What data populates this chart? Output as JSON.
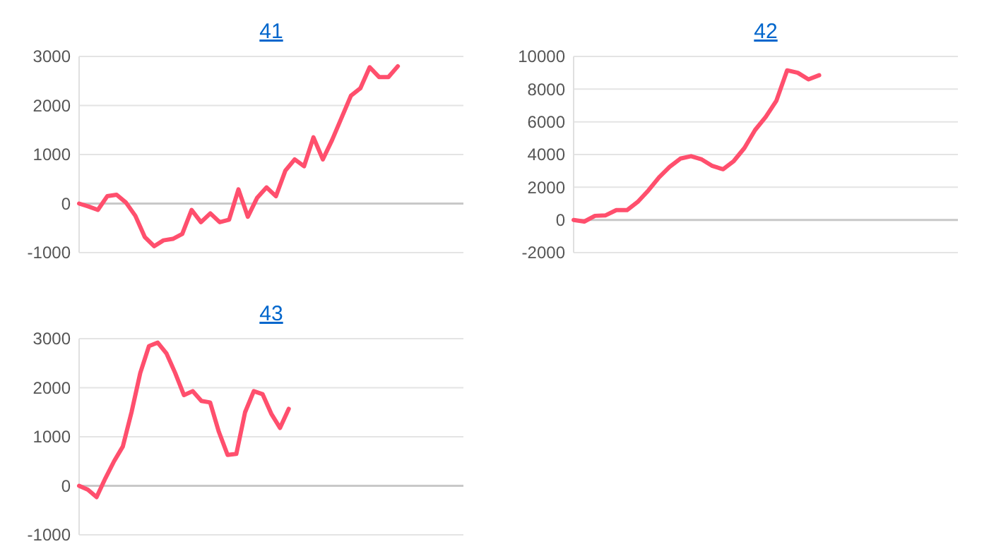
{
  "chart_data": [
    {
      "type": "line",
      "title": "41",
      "categories": [
        null,
        null,
        null,
        null,
        null,
        null,
        null,
        null,
        null,
        null,
        null,
        null,
        null,
        null,
        null,
        null,
        null,
        null,
        null,
        null,
        null,
        null,
        null,
        null,
        null,
        null,
        null,
        null,
        null,
        null,
        null,
        null,
        null,
        null,
        null,
        null,
        null,
        null,
        null,
        null,
        null,
        null
      ],
      "values": [
        0,
        -60,
        -130,
        150,
        180,
        20,
        -250,
        -680,
        -870,
        -750,
        -720,
        -620,
        -130,
        -380,
        -200,
        -380,
        -330,
        290,
        -270,
        120,
        330,
        150,
        670,
        900,
        760,
        1350,
        900,
        1300,
        1750,
        2200,
        2350,
        2780,
        2580,
        2580,
        2800,
        null,
        null,
        null,
        null,
        null,
        null,
        null
      ],
      "color": "#ff4f6d",
      "ylim": [
        -1000,
        3000
      ],
      "yticks": [
        -1000,
        0,
        1000,
        2000,
        3000
      ],
      "grid": "y",
      "tick_labels": "y",
      "marker": "none",
      "line_style": "solid"
    },
    {
      "type": "line",
      "title": "42",
      "categories": [
        null,
        null,
        null,
        null,
        null,
        null,
        null,
        null,
        null,
        null,
        null,
        null,
        null,
        null,
        null,
        null,
        null,
        null,
        null,
        null,
        null,
        null,
        null,
        null,
        null,
        null,
        null,
        null,
        null,
        null,
        null,
        null,
        null,
        null,
        null,
        null,
        null
      ],
      "values": [
        0,
        -100,
        250,
        280,
        600,
        600,
        1100,
        1800,
        2600,
        3250,
        3750,
        3900,
        3700,
        3300,
        3100,
        3600,
        4400,
        5500,
        6300,
        7300,
        9150,
        9000,
        8600,
        8850,
        null,
        null,
        null,
        null,
        null,
        null,
        null,
        null,
        null,
        null,
        null,
        null,
        null
      ],
      "color": "#ff4f6d",
      "ylim": [
        -2000,
        10000
      ],
      "yticks": [
        -2000,
        0,
        2000,
        4000,
        6000,
        8000,
        10000
      ],
      "grid": "y",
      "tick_labels": "y",
      "marker": "none",
      "line_style": "solid"
    },
    {
      "type": "line",
      "title": "43",
      "categories": [
        null,
        null,
        null,
        null,
        null,
        null,
        null,
        null,
        null,
        null,
        null,
        null,
        null,
        null,
        null,
        null,
        null,
        null,
        null,
        null,
        null,
        null,
        null,
        null,
        null,
        null,
        null,
        null,
        null,
        null,
        null,
        null,
        null,
        null,
        null,
        null,
        null,
        null,
        null,
        null,
        null,
        null,
        null,
        null,
        null
      ],
      "values": [
        0,
        -80,
        -230,
        150,
        500,
        800,
        1500,
        2300,
        2850,
        2920,
        2700,
        2300,
        1850,
        1930,
        1730,
        1700,
        1100,
        630,
        650,
        1500,
        1930,
        1870,
        1470,
        1180,
        1570,
        null,
        null,
        null,
        null,
        null,
        null,
        null,
        null,
        null,
        null,
        null,
        null,
        null,
        null,
        null,
        null,
        null,
        null,
        null,
        null
      ],
      "color": "#ff4f6d",
      "ylim": [
        -1000,
        3000
      ],
      "yticks": [
        -1000,
        0,
        1000,
        2000,
        3000
      ],
      "grid": "y",
      "tick_labels": "y",
      "marker": "none",
      "line_style": "solid"
    }
  ]
}
